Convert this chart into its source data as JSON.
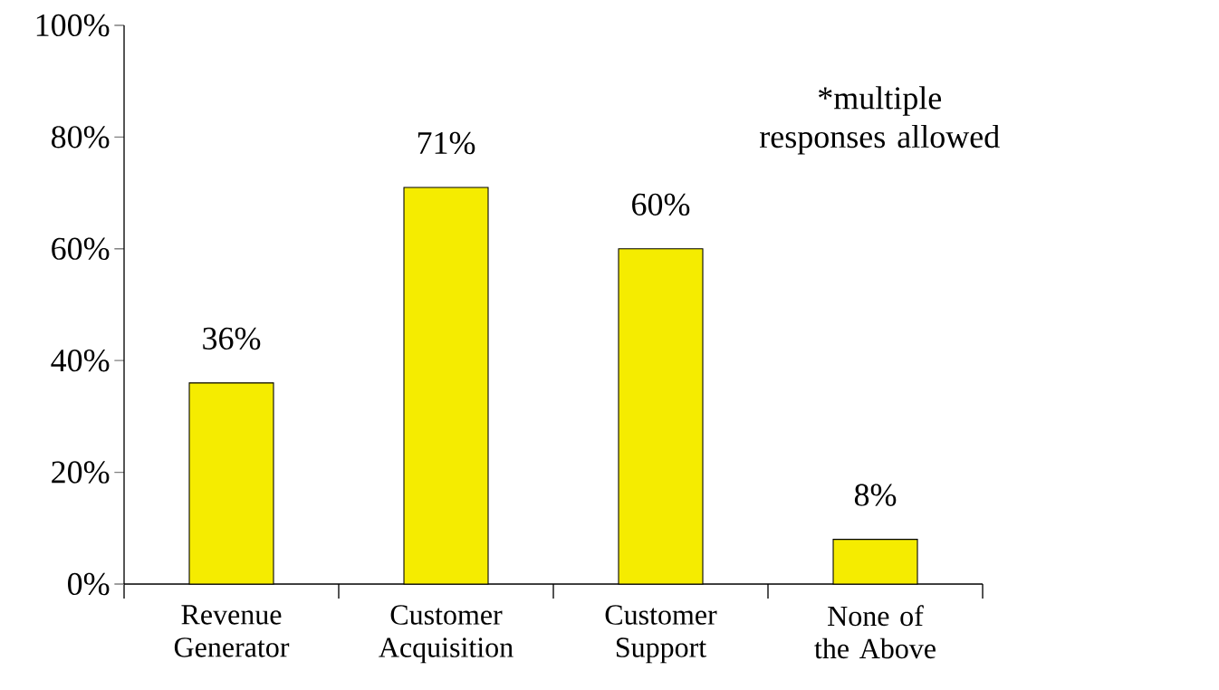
{
  "chart_data": {
    "type": "bar",
    "categories": [
      "Revenue Generator",
      "Customer Acquisition",
      "Customer Support",
      "None of the Above"
    ],
    "values": [
      36,
      71,
      60,
      8
    ],
    "value_labels": [
      "36%",
      "71%",
      "60%",
      "8%"
    ],
    "color": "#f5ec00",
    "ylim": [
      0,
      100
    ],
    "yticks": [
      {
        "value": 0,
        "label": "0%"
      },
      {
        "value": 20,
        "label": "20%"
      },
      {
        "value": 40,
        "label": "40%"
      },
      {
        "value": 60,
        "label": "60%"
      },
      {
        "value": 80,
        "label": "80%"
      },
      {
        "value": 100,
        "label": "100%"
      }
    ],
    "grid": false,
    "annotations": [
      "*multiple responses allowed"
    ]
  }
}
